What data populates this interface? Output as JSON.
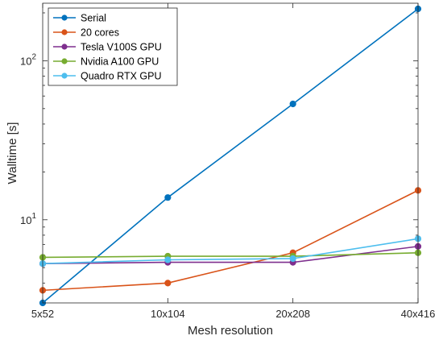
{
  "chart_data": {
    "type": "line",
    "xlabel": "Mesh resolution",
    "ylabel": "Walltime [s]",
    "y_scale": "log",
    "ylim": [
      3,
      230
    ],
    "grid": false,
    "legend_position": "top-left",
    "categories": [
      "5x52",
      "10x104",
      "20x208",
      "40x416"
    ],
    "y_ticks": [
      {
        "value": 10,
        "base": "10",
        "exp": "1"
      },
      {
        "value": 100,
        "base": "10",
        "exp": "2"
      }
    ],
    "series": [
      {
        "name": "Serial",
        "color": "#0072BD",
        "values": [
          3.0,
          13.8,
          53.5,
          212
        ]
      },
      {
        "name": "20 cores",
        "color": "#D95319",
        "values": [
          3.6,
          4.0,
          6.2,
          15.3
        ]
      },
      {
        "name": "Tesla V100S GPU",
        "color": "#7E2F8E",
        "values": [
          5.3,
          5.4,
          5.4,
          6.8
        ]
      },
      {
        "name": "Nvidia A100 GPU",
        "color": "#77AC30",
        "values": [
          5.8,
          5.9,
          5.9,
          6.2
        ]
      },
      {
        "name": "Quadro RTX GPU",
        "color": "#4DBEEE",
        "values": [
          5.3,
          5.6,
          5.7,
          7.6
        ]
      }
    ]
  }
}
